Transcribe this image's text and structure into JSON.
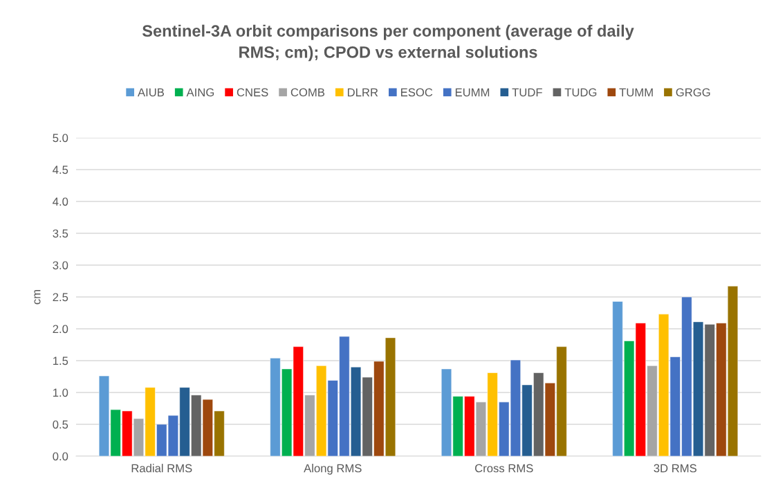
{
  "chart_data": {
    "type": "bar",
    "title": "Sentinel-3A orbit comparisons per component (average of daily\nRMS; cm); CPOD vs external solutions",
    "ylabel": "cm",
    "categories": [
      "Radial RMS",
      "Along RMS",
      "Cross RMS",
      "3D RMS"
    ],
    "series": [
      {
        "name": "AIUB",
        "color": "#5b9bd5",
        "values": [
          1.26,
          1.54,
          1.37,
          2.43
        ]
      },
      {
        "name": "AING",
        "color": "#00b050",
        "values": [
          0.73,
          1.37,
          0.94,
          1.81
        ]
      },
      {
        "name": "CNES",
        "color": "#ff0000",
        "values": [
          0.71,
          1.72,
          0.94,
          2.09
        ]
      },
      {
        "name": "COMB",
        "color": "#a5a5a5",
        "values": [
          0.59,
          0.96,
          0.85,
          1.42
        ]
      },
      {
        "name": "DLRR",
        "color": "#ffc000",
        "values": [
          1.08,
          1.42,
          1.31,
          2.23
        ]
      },
      {
        "name": "ESOC",
        "color": "#4472c4",
        "values": [
          0.5,
          1.19,
          0.85,
          1.56
        ]
      },
      {
        "name": "EUMM",
        "color": "#4472c4",
        "values": [
          0.64,
          1.88,
          1.51,
          2.5
        ]
      },
      {
        "name": "TUDF",
        "color": "#255e91",
        "values": [
          1.08,
          1.4,
          1.12,
          2.11
        ]
      },
      {
        "name": "TUDG",
        "color": "#636363",
        "values": [
          0.96,
          1.24,
          1.31,
          2.07
        ]
      },
      {
        "name": "TUMM",
        "color": "#9e480e",
        "values": [
          0.89,
          1.49,
          1.15,
          2.09
        ]
      },
      {
        "name": "GRGG",
        "color": "#997300",
        "values": [
          0.71,
          1.86,
          1.72,
          2.67
        ]
      }
    ],
    "ylim": [
      0,
      5
    ],
    "yticks": [
      {
        "value": 0,
        "label": "0.0"
      },
      {
        "value": 0.5,
        "label": "0.5"
      },
      {
        "value": 1,
        "label": "1.0"
      },
      {
        "value": 1.5,
        "label": "1.5"
      },
      {
        "value": 2,
        "label": "2.0"
      },
      {
        "value": 2.5,
        "label": "2.5"
      },
      {
        "value": 3,
        "label": "3.0"
      },
      {
        "value": 3.5,
        "label": "3.5"
      },
      {
        "value": 4,
        "label": "4.0"
      },
      {
        "value": 4.5,
        "label": "4.5"
      },
      {
        "value": 5,
        "label": "5.0"
      }
    ],
    "grid": "y",
    "legend": "top"
  }
}
